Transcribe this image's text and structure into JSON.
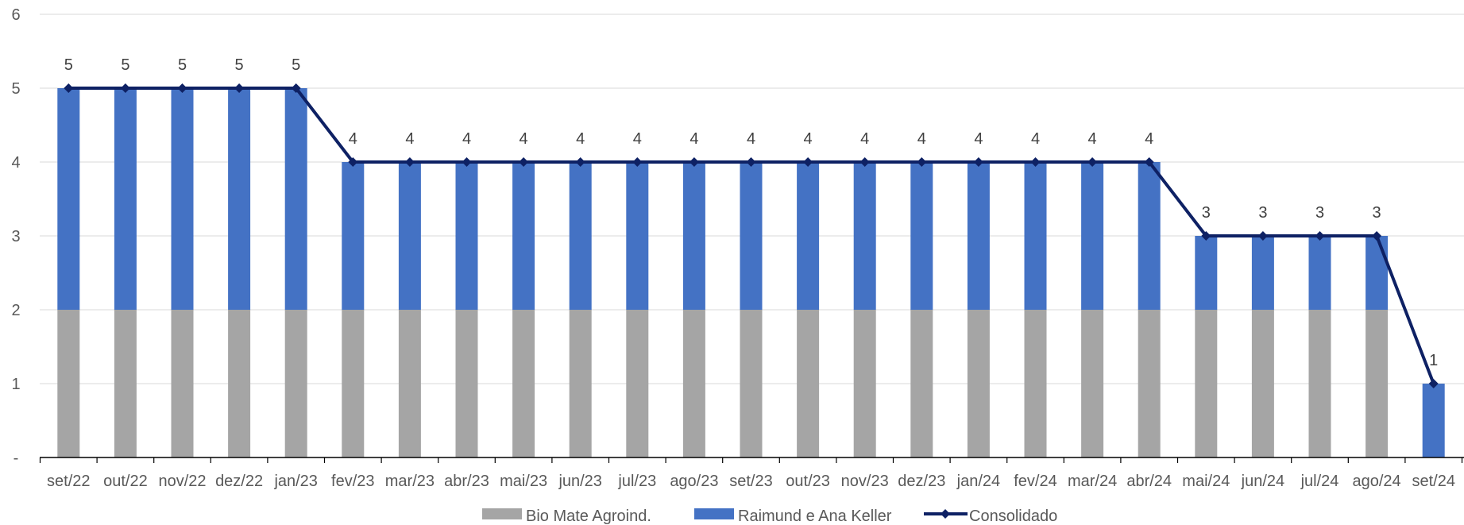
{
  "chart_data": {
    "type": "bar",
    "stacked": true,
    "categories": [
      "set/22",
      "out/22",
      "nov/22",
      "dez/22",
      "jan/23",
      "fev/23",
      "mar/23",
      "abr/23",
      "mai/23",
      "jun/23",
      "jul/23",
      "ago/23",
      "set/23",
      "out/23",
      "nov/23",
      "dez/23",
      "jan/24",
      "fev/24",
      "mar/24",
      "abr/24",
      "mai/24",
      "jun/24",
      "jul/24",
      "ago/24",
      "set/24"
    ],
    "series": [
      {
        "name": "Bio Mate Agroind.",
        "kind": "bar",
        "color": "#A5A5A5",
        "values": [
          2,
          2,
          2,
          2,
          2,
          2,
          2,
          2,
          2,
          2,
          2,
          2,
          2,
          2,
          2,
          2,
          2,
          2,
          2,
          2,
          2,
          2,
          2,
          2,
          0
        ]
      },
      {
        "name": "Raimund e Ana Keller",
        "kind": "bar",
        "color": "#4472C4",
        "values": [
          3,
          3,
          3,
          3,
          3,
          2,
          2,
          2,
          2,
          2,
          2,
          2,
          2,
          2,
          2,
          2,
          2,
          2,
          2,
          2,
          1,
          1,
          1,
          1,
          1
        ]
      },
      {
        "name": "Consolidado",
        "kind": "line",
        "color": "#0E2164",
        "values": [
          5,
          5,
          5,
          5,
          5,
          4,
          4,
          4,
          4,
          4,
          4,
          4,
          4,
          4,
          4,
          4,
          4,
          4,
          4,
          4,
          3,
          3,
          3,
          3,
          1
        ]
      }
    ],
    "ylim": [
      0,
      6
    ],
    "yticks": [
      0,
      1,
      2,
      3,
      4,
      5,
      6
    ],
    "ytick_labels": [
      "-",
      "1",
      "2",
      "3",
      "4",
      "5",
      "6"
    ],
    "grid": true,
    "legend_position": "bottom",
    "title": "",
    "xlabel": "",
    "ylabel": ""
  }
}
